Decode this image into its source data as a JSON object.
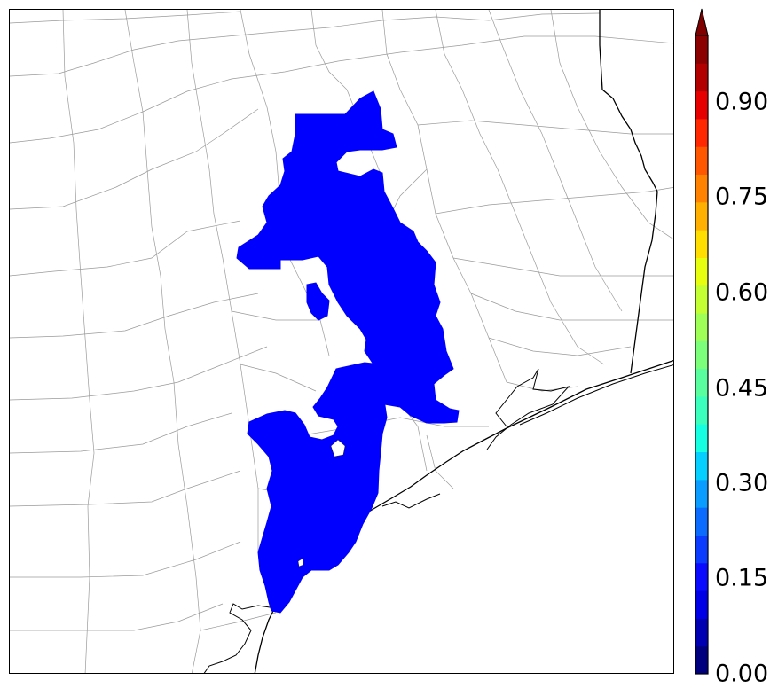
{
  "map": {
    "fill_color": "#0000ff",
    "coast_color": "#000000",
    "county_line_color": "#9a9a9a"
  },
  "colorbar": {
    "levels": [
      "#00007f",
      "#0000b2",
      "#0000e6",
      "#0a0aff",
      "#0b3bff",
      "#0c6bff",
      "#0a9dff",
      "#04cfff",
      "#15ffe2",
      "#3affbd",
      "#59ff9e",
      "#7cff7a",
      "#a0ff57",
      "#c3ff33",
      "#e7ff0f",
      "#ffde00",
      "#ffb000",
      "#ff8300",
      "#ff5700",
      "#ff2800",
      "#e60000",
      "#b20000",
      "#8b0000"
    ],
    "extend_color": "#800000",
    "ticks": [
      "0.00",
      "0.15",
      "0.30",
      "0.45",
      "0.60",
      "0.75",
      "0.90"
    ]
  }
}
